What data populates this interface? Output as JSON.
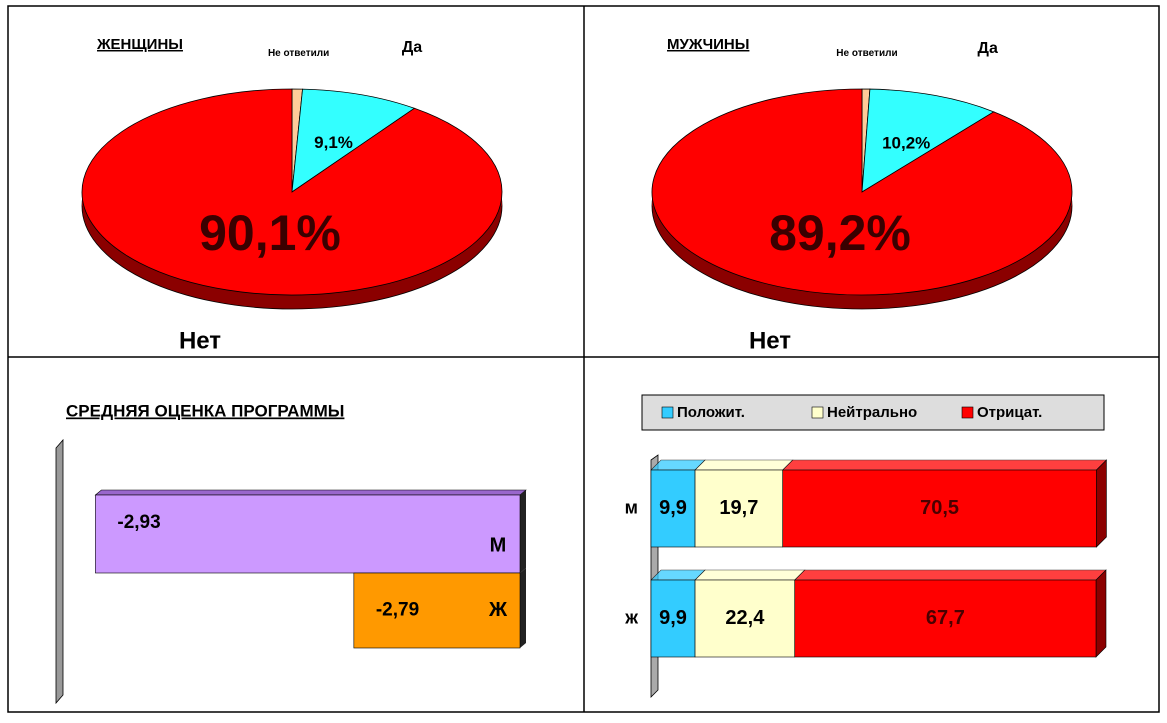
{
  "chart_data": [
    {
      "type": "pie",
      "title": "ЖЕНЩИНЫ",
      "categories": [
        "Не ответили",
        "Да",
        "Нет"
      ],
      "values": [
        0.8,
        9.1,
        90.1
      ],
      "value_labels": [
        null,
        "9,1%",
        "90,1%"
      ],
      "colors": [
        "#ffcc99",
        "#33ffff",
        "#ff0000"
      ]
    },
    {
      "type": "pie",
      "title": "МУЖЧИНЫ",
      "categories": [
        "Не ответили",
        "Да",
        "Нет"
      ],
      "values": [
        0.6,
        10.2,
        89.2
      ],
      "value_labels": [
        null,
        "10,2%",
        "89,2%"
      ],
      "colors": [
        "#ffcc99",
        "#33ffff",
        "#ff0000"
      ]
    },
    {
      "type": "hbar",
      "title": "СРЕДНЯЯ ОЦЕНКА ПРОГРАММЫ",
      "categories": [
        "М",
        "Ж"
      ],
      "values": [
        -2.93,
        -2.79
      ],
      "value_labels": [
        "-2,93",
        "-2,79"
      ],
      "colors": [
        "#cc99ff",
        "#ff9900"
      ],
      "xlim": [
        -2.96,
        -2.7
      ]
    },
    {
      "type": "stacked-hbar",
      "categories": [
        "м",
        "ж"
      ],
      "xlim": [
        0,
        100
      ],
      "legend": "top",
      "series": [
        {
          "name": "Положит.",
          "color": "#33ccff",
          "values": [
            9.9,
            9.9
          ],
          "value_labels": [
            "9,9",
            "9,9"
          ]
        },
        {
          "name": "Нейтрально",
          "color": "#ffffcc",
          "values": [
            19.7,
            22.4
          ],
          "value_labels": [
            "19,7",
            "22,4"
          ]
        },
        {
          "name": "Отрицат.",
          "color": "#ff0000",
          "values": [
            70.5,
            67.7
          ],
          "value_labels": [
            "70,5",
            "67,7"
          ]
        }
      ]
    }
  ]
}
